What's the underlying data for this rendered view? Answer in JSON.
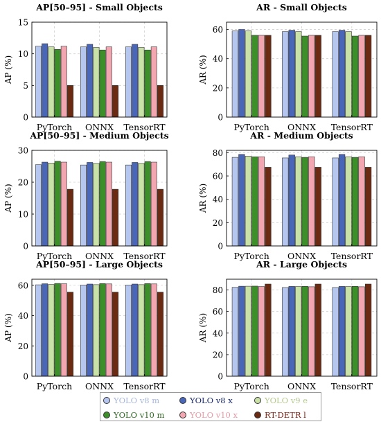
{
  "chart_data": [
    {
      "type": "bar",
      "title": "AP[50–95] - Small Objects",
      "ylabel": "AP (%)",
      "ylim": [
        0,
        15
      ],
      "yticks": [
        "0",
        "5",
        "10",
        "15"
      ],
      "categories": [
        "PyTorch",
        "ONNX",
        "TensorRT"
      ],
      "grid": true,
      "series": [
        {
          "name": "YOLO v8 m",
          "values": [
            11.2,
            11.1,
            11.1
          ]
        },
        {
          "name": "YOLO v8 x",
          "values": [
            11.6,
            11.5,
            11.5
          ]
        },
        {
          "name": "YOLO v9 e",
          "values": [
            11.1,
            11.0,
            11.0
          ]
        },
        {
          "name": "YOLO v10 m",
          "values": [
            10.7,
            10.6,
            10.6
          ]
        },
        {
          "name": "YOLO v10 x",
          "values": [
            11.2,
            11.1,
            11.1
          ]
        },
        {
          "name": "RT-DETR l",
          "values": [
            5.0,
            5.0,
            5.0
          ]
        }
      ]
    },
    {
      "type": "bar",
      "title": "AR - Small Objects",
      "ylabel": "AR (%)",
      "ylim": [
        0,
        65
      ],
      "yticks": [
        "0",
        "20",
        "40",
        "60"
      ],
      "categories": [
        "PyTorch",
        "ONNX",
        "TensorRT"
      ],
      "grid": true,
      "series": [
        {
          "name": "YOLO v8 m",
          "values": [
            59,
            58.5,
            58.5
          ]
        },
        {
          "name": "YOLO v8 x",
          "values": [
            60,
            59.5,
            59.5
          ]
        },
        {
          "name": "YOLO v9 e",
          "values": [
            59,
            58.5,
            58.5
          ]
        },
        {
          "name": "YOLO v10 m",
          "values": [
            56,
            55.5,
            55.5
          ]
        },
        {
          "name": "YOLO v10 x",
          "values": [
            56,
            56,
            56
          ]
        },
        {
          "name": "RT-DETR l",
          "values": [
            56,
            56,
            56
          ]
        }
      ]
    },
    {
      "type": "bar",
      "title": "AP[50–95] - Medium Objects",
      "ylabel": "AP (%)",
      "ylim": [
        0,
        30
      ],
      "yticks": [
        "0",
        "10",
        "20",
        "30"
      ],
      "categories": [
        "PyTorch",
        "ONNX",
        "TensorRT"
      ],
      "grid": true,
      "series": [
        {
          "name": "YOLO v8 m",
          "values": [
            25.5,
            25.4,
            25.4
          ]
        },
        {
          "name": "YOLO v8 x",
          "values": [
            26.3,
            26.2,
            26.2
          ]
        },
        {
          "name": "YOLO v9 e",
          "values": [
            26.0,
            25.9,
            25.9
          ]
        },
        {
          "name": "YOLO v10 m",
          "values": [
            26.6,
            26.5,
            26.5
          ]
        },
        {
          "name": "YOLO v10 x",
          "values": [
            26.3,
            26.3,
            26.3
          ]
        },
        {
          "name": "RT-DETR l",
          "values": [
            17.8,
            17.8,
            17.8
          ]
        }
      ]
    },
    {
      "type": "bar",
      "title": "AR - Medium Objects",
      "ylabel": "AR (%)",
      "ylim": [
        0,
        82
      ],
      "yticks": [
        "0",
        "20",
        "40",
        "60",
        "80"
      ],
      "categories": [
        "PyTorch",
        "ONNX",
        "TensorRT"
      ],
      "grid": true,
      "series": [
        {
          "name": "YOLO v8 m",
          "values": [
            76,
            75.5,
            75.5
          ]
        },
        {
          "name": "YOLO v8 x",
          "values": [
            78.5,
            78,
            78.5
          ]
        },
        {
          "name": "YOLO v9 e",
          "values": [
            77,
            76.5,
            76.5
          ]
        },
        {
          "name": "YOLO v10 m",
          "values": [
            76.5,
            76,
            76
          ]
        },
        {
          "name": "YOLO v10 x",
          "values": [
            76.5,
            76.5,
            76.5
          ]
        },
        {
          "name": "RT-DETR l",
          "values": [
            67.5,
            67.5,
            67.5
          ]
        }
      ]
    },
    {
      "type": "bar",
      "title": "AP[50–95] - Large Objects",
      "ylabel": "AP (%)",
      "ylim": [
        0,
        64
      ],
      "yticks": [
        "0",
        "20",
        "40",
        "60"
      ],
      "categories": [
        "PyTorch",
        "ONNX",
        "TensorRT"
      ],
      "grid": true,
      "series": [
        {
          "name": "YOLO v8 m",
          "values": [
            60.3,
            60.2,
            60.2
          ]
        },
        {
          "name": "YOLO v8 x",
          "values": [
            61.0,
            60.8,
            60.8
          ]
        },
        {
          "name": "YOLO v9 e",
          "values": [
            60.5,
            60.4,
            60.4
          ]
        },
        {
          "name": "YOLO v10 m",
          "values": [
            61.2,
            61.1,
            61.1
          ]
        },
        {
          "name": "YOLO v10 x",
          "values": [
            61.0,
            60.9,
            60.9
          ]
        },
        {
          "name": "RT-DETR l",
          "values": [
            55.5,
            55.5,
            55.5
          ]
        }
      ]
    },
    {
      "type": "bar",
      "title": "AR - Large Objects",
      "ylabel": "AR (%)",
      "ylim": [
        0,
        90
      ],
      "yticks": [
        "0",
        "20",
        "40",
        "60",
        "80"
      ],
      "categories": [
        "PyTorch",
        "ONNX",
        "TensorRT"
      ],
      "grid": true,
      "series": [
        {
          "name": "YOLO v8 m",
          "values": [
            82.5,
            82.3,
            82.3
          ]
        },
        {
          "name": "YOLO v8 x",
          "values": [
            83.5,
            83.3,
            83.3
          ]
        },
        {
          "name": "YOLO v9 e",
          "values": [
            83.5,
            83.2,
            83.2
          ]
        },
        {
          "name": "YOLO v10 m",
          "values": [
            83.6,
            83.4,
            83.4
          ]
        },
        {
          "name": "YOLO v10 x",
          "values": [
            83.2,
            83.0,
            83.0
          ]
        },
        {
          "name": "RT-DETR l",
          "values": [
            85.5,
            85.5,
            85.5
          ]
        }
      ]
    }
  ],
  "legend": {
    "placement": "bottom",
    "entries": [
      {
        "label": "YOLO v8 m",
        "color": "#b6c7ef",
        "text_color": "#a7b7d9"
      },
      {
        "label": "YOLO v8 x",
        "color": "#4a66b7",
        "text_color": "#1a2b6d"
      },
      {
        "label": "YOLO v9 e",
        "color": "#c9e2a8",
        "text_color": "#b4c98e"
      },
      {
        "label": "YOLO v10 m",
        "color": "#3d8f2a",
        "text_color": "#2c6a20"
      },
      {
        "label": "YOLO v10 x",
        "color": "#f2a6b0",
        "text_color": "#e79aa5"
      },
      {
        "label": "RT-DETR l",
        "color": "#6b2a12",
        "text_color": "#7a1e10"
      }
    ]
  }
}
